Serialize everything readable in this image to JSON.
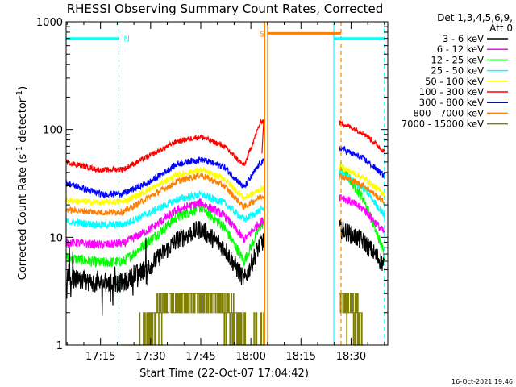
{
  "chart_data": {
    "type": "line",
    "title": "RHESSI Observing Summary Count Rates, Corrected",
    "xlabel": "Start Time (22-Oct-07 17:04:42)",
    "ylabel": "Corrected Count Rate (s",
    "ylabel_sup1": "-1",
    "ylabel_mid": " detector",
    "ylabel_sup2": "-1",
    "ylabel_end": ")",
    "y_scale": "log",
    "ylim": [
      1,
      1000
    ],
    "xlim": [
      "17:04:42",
      "18:41:00"
    ],
    "x_ticks": [
      "17:15",
      "17:30",
      "17:45",
      "18:00",
      "18:15",
      "18:30"
    ],
    "y_ticks": [
      "1",
      "10",
      "100",
      "1000"
    ],
    "legend_header": [
      "Det 1,3,4,5,6,9,",
      "Att 0"
    ],
    "legend_placement": "right",
    "timestamp": "16-Oct-2021 19:46",
    "series": [
      {
        "name": "3 - 6 keV",
        "color": "#000000",
        "points": [
          [
            "17:04:42",
            4.2
          ],
          [
            "17:15",
            3.7
          ],
          [
            "17:22",
            3.8
          ],
          [
            "17:30",
            5.5
          ],
          [
            "17:38",
            9.5
          ],
          [
            "17:45",
            12
          ],
          [
            "17:52",
            8
          ],
          [
            "17:58",
            4
          ],
          [
            "18:03",
            9
          ],
          [
            "18:27",
            12
          ],
          [
            "18:34",
            9
          ],
          [
            "18:40",
            5.5
          ]
        ]
      },
      {
        "name": "6 - 12 keV",
        "color": "#ff00ff",
        "points": [
          [
            "17:04:42",
            9
          ],
          [
            "17:15",
            8.5
          ],
          [
            "17:22",
            8.8
          ],
          [
            "17:30",
            12
          ],
          [
            "17:38",
            18
          ],
          [
            "17:45",
            21
          ],
          [
            "17:52",
            16
          ],
          [
            "17:58",
            9.5
          ],
          [
            "18:03",
            14
          ],
          [
            "18:27",
            24
          ],
          [
            "18:34",
            18
          ],
          [
            "18:40",
            11
          ]
        ]
      },
      {
        "name": "12 - 25 keV",
        "color": "#00ff00",
        "points": [
          [
            "17:04:42",
            6.5
          ],
          [
            "17:15",
            5.8
          ],
          [
            "17:22",
            6
          ],
          [
            "17:30",
            9.5
          ],
          [
            "17:38",
            15.5
          ],
          [
            "17:45",
            19
          ],
          [
            "17:52",
            12.5
          ],
          [
            "17:58",
            6
          ],
          [
            "18:03",
            13
          ],
          [
            "18:27",
            45
          ],
          [
            "18:34",
            22
          ],
          [
            "18:40",
            7
          ]
        ]
      },
      {
        "name": "25 - 50 keV",
        "color": "#00ffff",
        "points": [
          [
            "17:04:42",
            14
          ],
          [
            "17:15",
            13
          ],
          [
            "17:22",
            13.2
          ],
          [
            "17:30",
            17
          ],
          [
            "17:38",
            22.5
          ],
          [
            "17:45",
            25
          ],
          [
            "17:52",
            21
          ],
          [
            "17:58",
            14.5
          ],
          [
            "18:03",
            18
          ],
          [
            "18:27",
            40
          ],
          [
            "18:34",
            28
          ],
          [
            "18:40",
            16
          ]
        ]
      },
      {
        "name": "50 - 100 keV",
        "color": "#ffff00",
        "points": [
          [
            "17:04:42",
            22
          ],
          [
            "17:15",
            21
          ],
          [
            "17:22",
            21.5
          ],
          [
            "17:30",
            28
          ],
          [
            "17:38",
            38
          ],
          [
            "17:45",
            42
          ],
          [
            "17:52",
            35
          ],
          [
            "17:58",
            23
          ],
          [
            "18:03",
            28
          ],
          [
            "18:27",
            45
          ],
          [
            "18:34",
            35
          ],
          [
            "18:40",
            25
          ]
        ]
      },
      {
        "name": "100 - 300 keV",
        "color": "#ff0000",
        "points": [
          [
            "17:04:42",
            50
          ],
          [
            "17:15",
            42
          ],
          [
            "17:22",
            43
          ],
          [
            "17:30",
            58
          ],
          [
            "17:38",
            78
          ],
          [
            "17:45",
            86
          ],
          [
            "17:52",
            70
          ],
          [
            "17:58",
            46
          ],
          [
            "18:03",
            120
          ],
          [
            "18:27",
            115
          ],
          [
            "18:34",
            92
          ],
          [
            "18:40",
            62
          ]
        ]
      },
      {
        "name": "300 - 800 keV",
        "color": "#0000ff",
        "points": [
          [
            "17:04:42",
            32
          ],
          [
            "17:15",
            25
          ],
          [
            "17:22",
            25.5
          ],
          [
            "17:30",
            33
          ],
          [
            "17:38",
            48
          ],
          [
            "17:45",
            53
          ],
          [
            "17:52",
            45
          ],
          [
            "17:58",
            29
          ],
          [
            "18:03",
            50
          ],
          [
            "18:27",
            67
          ],
          [
            "18:34",
            53
          ],
          [
            "18:40",
            37
          ]
        ]
      },
      {
        "name": "800 - 7000 keV",
        "color": "#ff8000",
        "points": [
          [
            "17:04:42",
            18
          ],
          [
            "17:15",
            17
          ],
          [
            "17:22",
            17.3
          ],
          [
            "17:30",
            24
          ],
          [
            "17:38",
            33
          ],
          [
            "17:45",
            38
          ],
          [
            "17:52",
            30
          ],
          [
            "17:58",
            19
          ],
          [
            "18:03",
            24
          ],
          [
            "18:27",
            37
          ],
          [
            "18:34",
            30
          ],
          [
            "18:40",
            21
          ]
        ]
      },
      {
        "name": "7000 - 15000 keV",
        "color": "#808000",
        "points": [
          [
            "17:21",
            1
          ],
          [
            "17:25",
            1
          ],
          [
            "17:31",
            1.6
          ],
          [
            "17:33",
            2.2
          ],
          [
            "17:38",
            2.6
          ],
          [
            "17:45",
            2.8
          ],
          [
            "17:48",
            3.2
          ],
          [
            "17:52",
            2.2
          ],
          [
            "17:57",
            1.4
          ],
          [
            "17:59",
            1
          ],
          [
            "18:27",
            2.5
          ],
          [
            "18:32",
            2.0
          ],
          [
            "18:34",
            1
          ]
        ]
      }
    ],
    "flag_bars": [
      {
        "label": "N",
        "color": "#00ffff",
        "start": "17:04:42",
        "end": "17:20:30",
        "level": 700
      },
      {
        "label": "",
        "color": "#00ffff",
        "start": "18:24:50",
        "end": "18:40:00",
        "level": 700
      },
      {
        "label": "S",
        "color": "#ff8000",
        "start": "18:05:00",
        "end": "18:27:00",
        "level": 780
      }
    ],
    "vertical_markers": [
      {
        "color": "#00ffff",
        "time": "17:20:30",
        "style": "dashed"
      },
      {
        "color": "#00ffff",
        "time": "18:24:50",
        "style": "solid"
      },
      {
        "color": "#00ffff",
        "time": "18:40:00",
        "style": "dashed"
      },
      {
        "color": "#ff8000",
        "time": "18:04:10",
        "style": "solid"
      },
      {
        "color": "#ff8000",
        "time": "18:05:00",
        "style": "solid"
      },
      {
        "color": "#ff8000",
        "time": "18:27:00",
        "style": "dashed"
      }
    ],
    "gap": {
      "start": "18:04:00",
      "end": "18:26:30"
    }
  }
}
